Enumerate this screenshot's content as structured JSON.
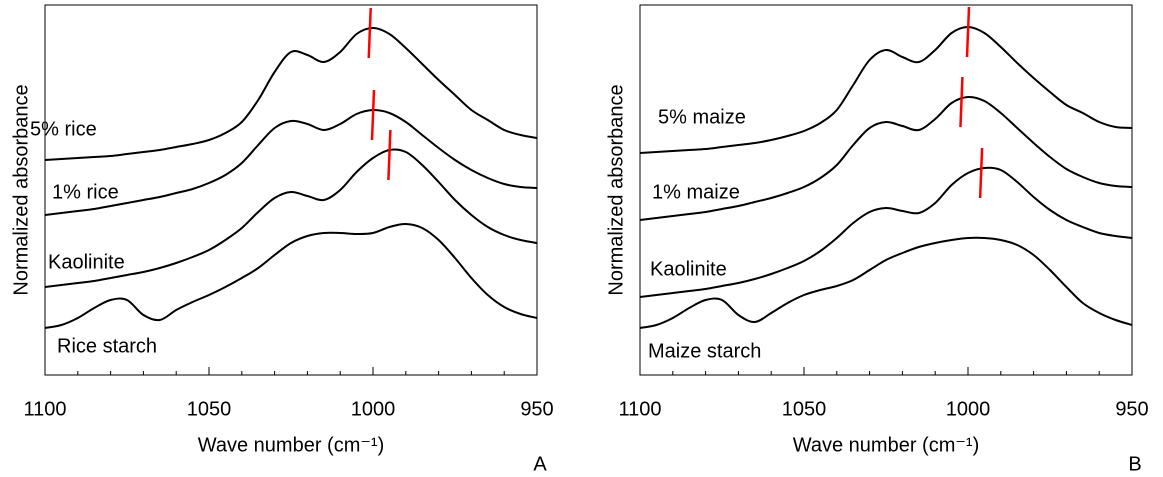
{
  "chart_data": [
    {
      "type": "line",
      "x_label": "Wave number (cm⁻¹)",
      "y_label": "Normalized absorbance",
      "panel_label": "A",
      "xlim": [
        1100,
        950
      ],
      "xticks": [
        1100,
        1050,
        1000,
        950
      ],
      "xminor_ticks": [
        1090,
        1080,
        1070,
        1060,
        1040,
        1030,
        1020,
        1010,
        990,
        980,
        970,
        960
      ],
      "ylim": [
        0,
        370
      ],
      "peak_color": "#ff0000",
      "x": [
        1100,
        1095,
        1090,
        1085,
        1080,
        1075,
        1070,
        1065,
        1060,
        1055,
        1050,
        1045,
        1040,
        1035,
        1030,
        1025,
        1020,
        1015,
        1010,
        1005,
        1000,
        995,
        990,
        985,
        980,
        975,
        970,
        965,
        960,
        955,
        950
      ],
      "series": [
        {
          "name": "5% rice",
          "color": "#000000",
          "peak": 1001,
          "values": [
            215,
            216,
            217,
            218,
            219,
            221,
            223,
            225,
            228,
            231,
            235,
            242,
            253,
            275,
            303,
            323,
            320,
            313,
            323,
            341,
            347,
            341,
            327,
            311,
            295,
            280,
            265,
            255,
            245,
            240,
            237
          ]
        },
        {
          "name": "1% rice",
          "color": "#000000",
          "peak": 1000,
          "values": [
            160,
            162,
            164,
            166,
            169,
            172,
            175,
            178,
            182,
            186,
            192,
            200,
            212,
            230,
            247,
            254,
            251,
            245,
            251,
            261,
            265,
            262,
            253,
            240,
            227,
            215,
            205,
            197,
            191,
            188,
            187
          ]
        },
        {
          "name": "Kaolinite",
          "color": "#000000",
          "peak": 995,
          "values": [
            88,
            90,
            92,
            94,
            97,
            100,
            103,
            107,
            112,
            118,
            125,
            135,
            147,
            163,
            177,
            183,
            179,
            175,
            185,
            203,
            217,
            225,
            223,
            210,
            193,
            175,
            160,
            148,
            140,
            135,
            132
          ]
        },
        {
          "name": "Rice starch",
          "color": "#000000",
          "values": [
            47,
            50,
            57,
            67,
            75,
            75,
            60,
            55,
            65,
            73,
            80,
            88,
            97,
            107,
            120,
            132,
            139,
            142,
            142,
            141,
            142,
            148,
            151,
            147,
            135,
            117,
            97,
            80,
            68,
            61,
            57
          ]
        }
      ]
    },
    {
      "type": "line",
      "x_label": "Wave number (cm⁻¹)",
      "y_label": "Normalized absorbance",
      "panel_label": "B",
      "xlim": [
        1100,
        950
      ],
      "xticks": [
        1100,
        1050,
        1000,
        950
      ],
      "xminor_ticks": [
        1090,
        1080,
        1070,
        1060,
        1040,
        1030,
        1020,
        1010,
        990,
        980,
        970,
        960
      ],
      "ylim": [
        0,
        370
      ],
      "peak_color": "#ff0000",
      "x": [
        1100,
        1095,
        1090,
        1085,
        1080,
        1075,
        1070,
        1065,
        1060,
        1055,
        1050,
        1045,
        1040,
        1035,
        1030,
        1025,
        1020,
        1015,
        1010,
        1005,
        1000,
        995,
        990,
        985,
        980,
        975,
        970,
        965,
        960,
        955,
        950
      ],
      "series": [
        {
          "name": "5% maize",
          "color": "#000000",
          "peak": 1000,
          "values": [
            222,
            223,
            224,
            225,
            226,
            228,
            230,
            232,
            235,
            239,
            244,
            252,
            265,
            290,
            315,
            325,
            318,
            313,
            325,
            342,
            348,
            342,
            328,
            312,
            297,
            283,
            270,
            262,
            253,
            248,
            247
          ]
        },
        {
          "name": "1% maize",
          "color": "#000000",
          "peak": 1002,
          "values": [
            155,
            157,
            159,
            161,
            163,
            166,
            169,
            173,
            177,
            182,
            188,
            197,
            210,
            230,
            247,
            253,
            249,
            245,
            256,
            272,
            278,
            274,
            262,
            247,
            232,
            218,
            206,
            198,
            192,
            189,
            188
          ]
        },
        {
          "name": "Kaolinite",
          "color": "#000000",
          "peak": 996,
          "values": [
            78,
            80,
            82,
            84,
            86,
            89,
            92,
            96,
            101,
            107,
            114,
            124,
            137,
            152,
            163,
            167,
            164,
            162,
            172,
            190,
            202,
            207,
            205,
            193,
            178,
            165,
            155,
            148,
            142,
            139,
            137
          ]
        },
        {
          "name": "Maize starch",
          "color": "#000000",
          "values": [
            47,
            50,
            57,
            67,
            75,
            75,
            60,
            53,
            62,
            72,
            80,
            85,
            89,
            95,
            105,
            115,
            122,
            128,
            132,
            135,
            137,
            137,
            135,
            130,
            120,
            105,
            88,
            72,
            62,
            55,
            50
          ]
        }
      ]
    }
  ]
}
